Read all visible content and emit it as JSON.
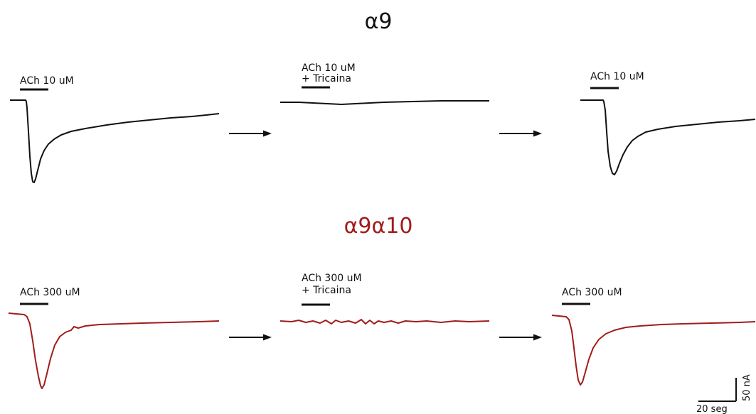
{
  "colors": {
    "alpha9": "#111111",
    "alpha9alpha10": "#a01c1c"
  },
  "rows": [
    {
      "title": "α9",
      "panels": [
        {
          "label_line1": "ACh 10 uM",
          "label_line2": ""
        },
        {
          "label_line1": "ACh 10 uM",
          "label_line2": "+  Tricaina"
        },
        {
          "label_line1": "ACh 10 uM",
          "label_line2": ""
        }
      ]
    },
    {
      "title": "α9α10",
      "panels": [
        {
          "label_line1": "ACh 300 uM",
          "label_line2": ""
        },
        {
          "label_line1": "ACh 300 uM",
          "label_line2": "+  Tricaina"
        },
        {
          "label_line1": "ACh 300 uM",
          "label_line2": ""
        }
      ]
    }
  ],
  "scale_bar": {
    "current_label": "50 nA",
    "time_label": "20 seg"
  }
}
